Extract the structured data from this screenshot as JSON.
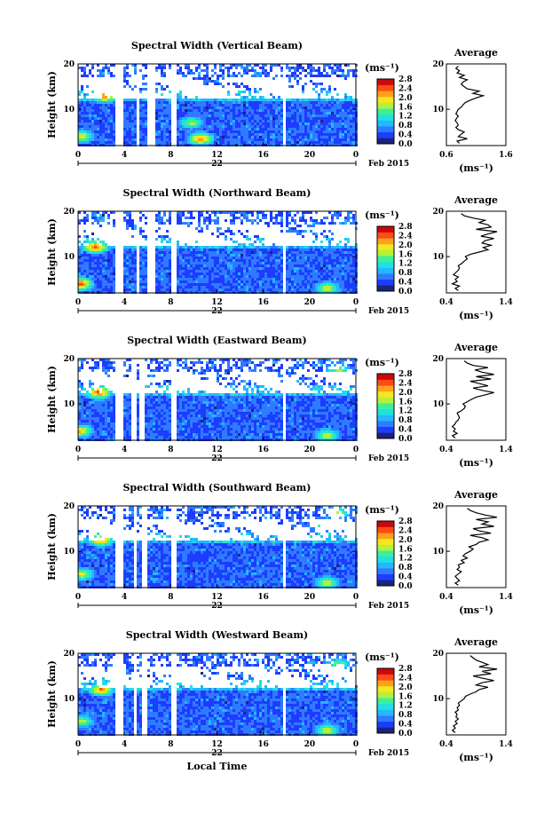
{
  "chart_data": [
    {
      "type": "heatmap",
      "title": "Spectral Width (Vertical Beam)",
      "ylabel": "Height (km)",
      "xlabel": "",
      "ylim": [
        2,
        20
      ],
      "y_ticks": [
        "20",
        "10"
      ],
      "xlim": [
        0,
        24
      ],
      "x_ticks": [
        "0",
        "4",
        "8",
        "12",
        "16",
        "20",
        "0"
      ],
      "date_day": "22",
      "date_month": "Feb 2015",
      "colorbar": {
        "unit": "(ms⁻¹)",
        "min": 0.0,
        "max": 2.8,
        "ticks": [
          "2.8",
          "2.4",
          "2.0",
          "1.6",
          "1.2",
          "0.8",
          "0.4",
          "0.0"
        ]
      },
      "gaps_hours": [
        [
          3.2,
          3.9
        ],
        [
          5.0,
          5.4
        ],
        [
          5.9,
          6.6
        ],
        [
          8.1,
          8.6
        ],
        [
          17.7,
          17.9
        ]
      ],
      "hotspots": [
        {
          "x": 2.3,
          "y": 13,
          "v": 2.6
        },
        {
          "x": 0.3,
          "y": 4,
          "v": 2.0
        },
        {
          "x": 10.6,
          "y": 3.5,
          "v": 2.4
        },
        {
          "x": 9.8,
          "y": 7,
          "v": 1.8
        }
      ],
      "profile": {
        "title": "Average",
        "xlabel": "(ms⁻¹)",
        "xlim": [
          0.6,
          1.6
        ],
        "x_ticks": [
          "0.6",
          "1.6"
        ],
        "ylim": [
          2,
          20
        ],
        "y_ticks": [
          "20",
          "10"
        ],
        "heights": [
          2.5,
          3,
          3.5,
          4,
          4.5,
          5,
          5.5,
          6,
          6.5,
          7,
          7.5,
          8,
          8.5,
          9,
          9.5,
          10,
          10.5,
          11,
          11.5,
          12,
          12.5,
          13,
          13.5,
          14,
          14.5,
          15,
          15.5,
          16,
          16.5,
          17,
          17.5,
          18,
          18.5,
          19,
          19.5
        ],
        "values": [
          0.82,
          0.78,
          0.95,
          0.8,
          0.85,
          0.9,
          0.8,
          0.76,
          0.8,
          0.78,
          0.75,
          0.77,
          0.8,
          0.76,
          0.78,
          0.8,
          0.85,
          0.88,
          0.92,
          1.0,
          1.1,
          1.22,
          1.05,
          1.15,
          0.95,
          0.9,
          0.85,
          0.88,
          0.95,
          0.82,
          0.9,
          0.78,
          0.82,
          0.76,
          0.8
        ]
      }
    },
    {
      "type": "heatmap",
      "title": "Spectral Width (Northward Beam)",
      "ylabel": "Height (km)",
      "xlabel": "",
      "ylim": [
        2,
        20
      ],
      "y_ticks": [
        "20",
        "10"
      ],
      "xlim": [
        0,
        24
      ],
      "x_ticks": [
        "0",
        "4",
        "8",
        "12",
        "16",
        "20",
        "0"
      ],
      "date_day": "22",
      "date_month": "Feb 2015",
      "colorbar": {
        "unit": "(ms⁻¹)",
        "min": 0.0,
        "max": 2.8,
        "ticks": [
          "2.8",
          "2.4",
          "2.0",
          "1.6",
          "1.2",
          "0.8",
          "0.4",
          "0.0"
        ]
      },
      "gaps_hours": [
        [
          3.2,
          3.9
        ],
        [
          5.0,
          5.4
        ],
        [
          5.9,
          6.6
        ],
        [
          8.1,
          8.6
        ],
        [
          17.7,
          17.9
        ]
      ],
      "hotspots": [
        {
          "x": 1.5,
          "y": 12.2,
          "v": 2.6
        },
        {
          "x": 0.2,
          "y": 4,
          "v": 2.6
        },
        {
          "x": 21.5,
          "y": 3,
          "v": 2.0
        },
        {
          "x": 23.2,
          "y": 16,
          "v": 1.8
        }
      ],
      "profile": {
        "title": "Average",
        "xlabel": "(ms⁻¹)",
        "xlim": [
          0.4,
          1.4
        ],
        "x_ticks": [
          "0.4",
          "1.4"
        ],
        "ylim": [
          2,
          20
        ],
        "y_ticks": [
          "20",
          "10"
        ],
        "heights": [
          2.5,
          3,
          3.5,
          4,
          4.5,
          5,
          5.5,
          6,
          6.5,
          7,
          7.5,
          8,
          8.5,
          9,
          9.5,
          10,
          10.5,
          11,
          11.5,
          12,
          12.5,
          13,
          13.5,
          14,
          14.5,
          15,
          15.5,
          16,
          16.5,
          17,
          17.5,
          18,
          18.5,
          19,
          19.5
        ],
        "values": [
          0.6,
          0.55,
          0.62,
          0.5,
          0.58,
          0.55,
          0.6,
          0.52,
          0.56,
          0.6,
          0.62,
          0.6,
          0.66,
          0.7,
          0.75,
          0.72,
          0.8,
          0.95,
          1.1,
          1.02,
          1.15,
          1.0,
          1.05,
          1.2,
          0.98,
          1.1,
          1.25,
          0.9,
          1.15,
          1.1,
          0.95,
          1.05,
          0.85,
          0.7,
          0.65
        ]
      }
    },
    {
      "type": "heatmap",
      "title": "Spectral Width (Eastward Beam)",
      "ylabel": "Height (km)",
      "xlabel": "",
      "ylim": [
        2,
        20
      ],
      "y_ticks": [
        "20",
        "10"
      ],
      "xlim": [
        0,
        24
      ],
      "x_ticks": [
        "0",
        "4",
        "8",
        "12",
        "16",
        "20",
        "0"
      ],
      "date_day": "22",
      "date_month": "Feb 2015",
      "colorbar": {
        "unit": "(ms⁻¹)",
        "min": 0.0,
        "max": 2.8,
        "ticks": [
          "2.8",
          "2.4",
          "2.0",
          "1.6",
          "1.2",
          "0.8",
          "0.4",
          "0.0"
        ]
      },
      "gaps_hours": [
        [
          3.2,
          3.9
        ],
        [
          4.6,
          5.0
        ],
        [
          5.4,
          5.8
        ],
        [
          8.1,
          8.6
        ],
        [
          17.7,
          17.9
        ]
      ],
      "hotspots": [
        {
          "x": 1.8,
          "y": 12.5,
          "v": 2.6
        },
        {
          "x": 0.2,
          "y": 4,
          "v": 2.2
        },
        {
          "x": 21.5,
          "y": 3,
          "v": 2.0
        },
        {
          "x": 22.5,
          "y": 17.5,
          "v": 1.8
        }
      ],
      "profile": {
        "title": "Average",
        "xlabel": "(ms⁻¹)",
        "xlim": [
          0.4,
          1.4
        ],
        "x_ticks": [
          "0.4",
          "1.4"
        ],
        "ylim": [
          2,
          20
        ],
        "y_ticks": [
          "20",
          "10"
        ],
        "heights": [
          2.5,
          3,
          3.5,
          4,
          4.5,
          5,
          5.5,
          6,
          6.5,
          7,
          7.5,
          8,
          8.5,
          9,
          9.5,
          10,
          10.5,
          11,
          11.5,
          12,
          12.5,
          13,
          13.5,
          14,
          14.5,
          15,
          15.5,
          16,
          16.5,
          17,
          17.5,
          18,
          18.5,
          19,
          19.5
        ],
        "values": [
          0.55,
          0.5,
          0.58,
          0.52,
          0.55,
          0.5,
          0.54,
          0.56,
          0.6,
          0.62,
          0.6,
          0.58,
          0.65,
          0.7,
          0.72,
          0.68,
          0.75,
          0.82,
          0.9,
          1.05,
          1.2,
          1.0,
          0.85,
          1.1,
          0.95,
          0.8,
          1.15,
          0.9,
          1.2,
          1.0,
          0.88,
          1.1,
          0.85,
          0.75,
          0.7
        ]
      }
    },
    {
      "type": "heatmap",
      "title": "Spectral Width (Southward Beam)",
      "ylabel": "Height (km)",
      "xlabel": "",
      "ylim": [
        2,
        20
      ],
      "y_ticks": [
        "20",
        "10"
      ],
      "xlim": [
        0,
        24
      ],
      "x_ticks": [
        "0",
        "4",
        "8",
        "12",
        "16",
        "20",
        "0"
      ],
      "date_day": "22",
      "date_month": "Feb 2015",
      "colorbar": {
        "unit": "(ms⁻¹)",
        "min": 0.0,
        "max": 2.8,
        "ticks": [
          "2.8",
          "2.4",
          "2.0",
          "1.6",
          "1.2",
          "0.8",
          "0.4",
          "0.0"
        ]
      },
      "gaps_hours": [
        [
          3.2,
          3.9
        ],
        [
          4.8,
          5.1
        ],
        [
          5.5,
          5.9
        ],
        [
          8.1,
          8.6
        ],
        [
          17.7,
          17.9
        ]
      ],
      "hotspots": [
        {
          "x": 2.0,
          "y": 12.5,
          "v": 2.4
        },
        {
          "x": 0.3,
          "y": 5,
          "v": 2.0
        },
        {
          "x": 21.5,
          "y": 3,
          "v": 2.0
        },
        {
          "x": 22.5,
          "y": 18.5,
          "v": 1.8
        },
        {
          "x": 21.0,
          "y": 16,
          "v": 1.6
        }
      ],
      "profile": {
        "title": "Average",
        "xlabel": "(ms⁻¹)",
        "xlim": [
          0.4,
          1.4
        ],
        "x_ticks": [
          "0.4",
          "1.4"
        ],
        "ylim": [
          2,
          20
        ],
        "y_ticks": [
          "20",
          "10"
        ],
        "heights": [
          2.5,
          3,
          3.5,
          4,
          4.5,
          5,
          5.5,
          6,
          6.5,
          7,
          7.5,
          8,
          8.5,
          9,
          9.5,
          10,
          10.5,
          11,
          11.5,
          12,
          12.5,
          13,
          13.5,
          14,
          14.5,
          15,
          15.5,
          16,
          16.5,
          17,
          17.5,
          18,
          18.5,
          19,
          19.5
        ],
        "values": [
          0.6,
          0.55,
          0.62,
          0.58,
          0.55,
          0.6,
          0.65,
          0.58,
          0.62,
          0.6,
          0.7,
          0.65,
          0.75,
          0.68,
          0.72,
          0.8,
          0.85,
          0.78,
          0.9,
          0.95,
          1.1,
          1.0,
          0.8,
          1.15,
          0.95,
          0.85,
          1.2,
          1.0,
          1.1,
          0.9,
          1.25,
          1.05,
          0.9,
          0.8,
          0.75
        ]
      }
    },
    {
      "type": "heatmap",
      "title": "Spectral Width (Westward Beam)",
      "ylabel": "Height (km)",
      "xlabel": "Local Time",
      "ylim": [
        2,
        20
      ],
      "y_ticks": [
        "20",
        "10"
      ],
      "xlim": [
        0,
        24
      ],
      "x_ticks": [
        "0",
        "4",
        "8",
        "12",
        "16",
        "20",
        "0"
      ],
      "date_day": "22",
      "date_month": "Feb 2015",
      "colorbar": {
        "unit": "(ms⁻¹)",
        "min": 0.0,
        "max": 2.8,
        "ticks": [
          "2.8",
          "2.4",
          "2.0",
          "1.6",
          "1.2",
          "0.8",
          "0.4",
          "0.0"
        ]
      },
      "gaps_hours": [
        [
          3.2,
          3.9
        ],
        [
          4.8,
          5.1
        ],
        [
          5.5,
          5.9
        ],
        [
          8.1,
          8.6
        ],
        [
          17.7,
          17.9
        ]
      ],
      "hotspots": [
        {
          "x": 2.0,
          "y": 12,
          "v": 2.4
        },
        {
          "x": 0.3,
          "y": 5,
          "v": 1.8
        },
        {
          "x": 21.5,
          "y": 3,
          "v": 2.0
        },
        {
          "x": 22.5,
          "y": 17.5,
          "v": 1.8
        },
        {
          "x": 15,
          "y": 13,
          "v": 1.6
        }
      ],
      "profile": {
        "title": "Average",
        "xlabel": "(ms⁻¹)",
        "xlim": [
          0.4,
          1.4
        ],
        "x_ticks": [
          "0.4",
          "1.4"
        ],
        "ylim": [
          2,
          20
        ],
        "y_ticks": [
          "20",
          "10"
        ],
        "heights": [
          2.5,
          3,
          3.5,
          4,
          4.5,
          5,
          5.5,
          6,
          6.5,
          7,
          7.5,
          8,
          8.5,
          9,
          9.5,
          10,
          10.5,
          11,
          11.5,
          12,
          12.5,
          13,
          13.5,
          14,
          14.5,
          15,
          15.5,
          16,
          16.5,
          17,
          17.5,
          18,
          18.5,
          19,
          19.5
        ],
        "values": [
          0.55,
          0.5,
          0.55,
          0.52,
          0.58,
          0.55,
          0.6,
          0.56,
          0.58,
          0.55,
          0.6,
          0.58,
          0.62,
          0.6,
          0.65,
          0.7,
          0.72,
          0.8,
          0.9,
          0.95,
          1.1,
          0.9,
          1.0,
          1.2,
          1.0,
          0.85,
          1.15,
          1.0,
          1.25,
          0.95,
          1.1,
          1.0,
          0.9,
          0.85,
          0.8
        ]
      }
    }
  ],
  "colors": {
    "colormap": [
      "#1a237e",
      "#1e3cff",
      "#2f7bff",
      "#23b8ff",
      "#22e0e0",
      "#3cf09a",
      "#b4f03c",
      "#f5e61e",
      "#ffa01e",
      "#ff4b14",
      "#c80a0a"
    ],
    "background": "#ffffff",
    "ink": "#000000"
  }
}
